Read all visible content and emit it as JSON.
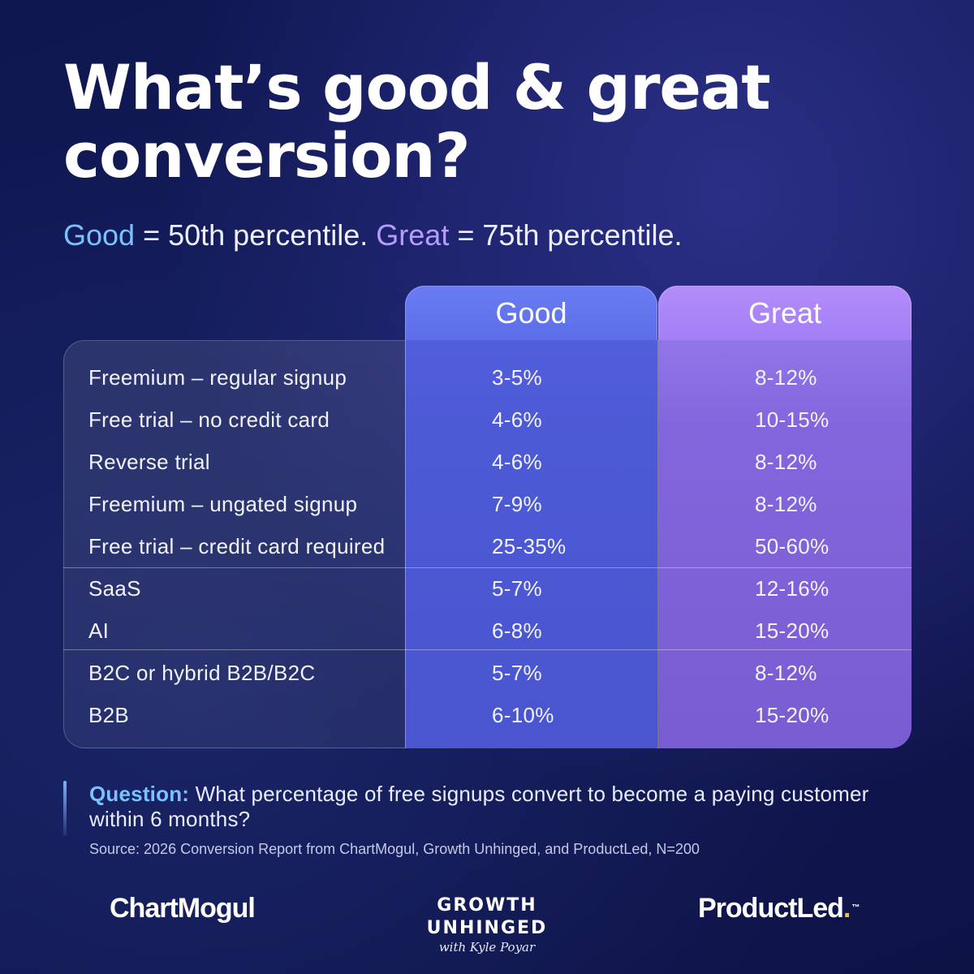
{
  "title": "What’s good & great conversion?",
  "subtitle": {
    "good_word": "Good",
    "good_rest": " = 50th percentile. ",
    "great_word": "Great",
    "great_rest": " = 75th percentile."
  },
  "colors": {
    "good_accent": "#79c2ff",
    "great_accent": "#b79cff",
    "good_column": "#4d5ad6",
    "great_column": "#8366dd",
    "background": "#121a58",
    "logo_dot": "#f5c21b"
  },
  "chart_data": {
    "type": "table",
    "columns": [
      "Good",
      "Great"
    ],
    "groups": [
      {
        "rows": [
          {
            "label": "Freemium – regular signup",
            "good": "3-5%",
            "great": "8-12%"
          },
          {
            "label": "Free trial – no credit card",
            "good": "4-6%",
            "great": "10-15%"
          },
          {
            "label": "Reverse trial",
            "good": "4-6%",
            "great": "8-12%"
          },
          {
            "label": "Freemium – ungated signup",
            "good": "7-9%",
            "great": "8-12%"
          },
          {
            "label": "Free trial – credit card required",
            "good": "25-35%",
            "great": "50-60%"
          }
        ]
      },
      {
        "rows": [
          {
            "label": "SaaS",
            "good": "5-7%",
            "great": "12-16%"
          },
          {
            "label": "AI",
            "good": "6-8%",
            "great": "15-20%"
          }
        ]
      },
      {
        "rows": [
          {
            "label": "B2C or hybrid B2B/B2C",
            "good": "5-7%",
            "great": "8-12%"
          },
          {
            "label": "B2B",
            "good": "6-10%",
            "great": "15-20%"
          }
        ]
      }
    ]
  },
  "question": {
    "label": "Question:",
    "text": " What percentage of free signups convert to become a paying customer within 6 months?"
  },
  "source": "Source: 2026 Conversion Report from ChartMogul, Growth Unhinged, and ProductLed, N=200",
  "logos": {
    "chartmogul": "ChartMogul",
    "growth_unhinged": "GROWTH UNHINGED",
    "growth_unhinged_sub": "with Kyle Poyar",
    "productled": "ProductLed",
    "productled_dot": ".",
    "productled_tm": "™"
  }
}
